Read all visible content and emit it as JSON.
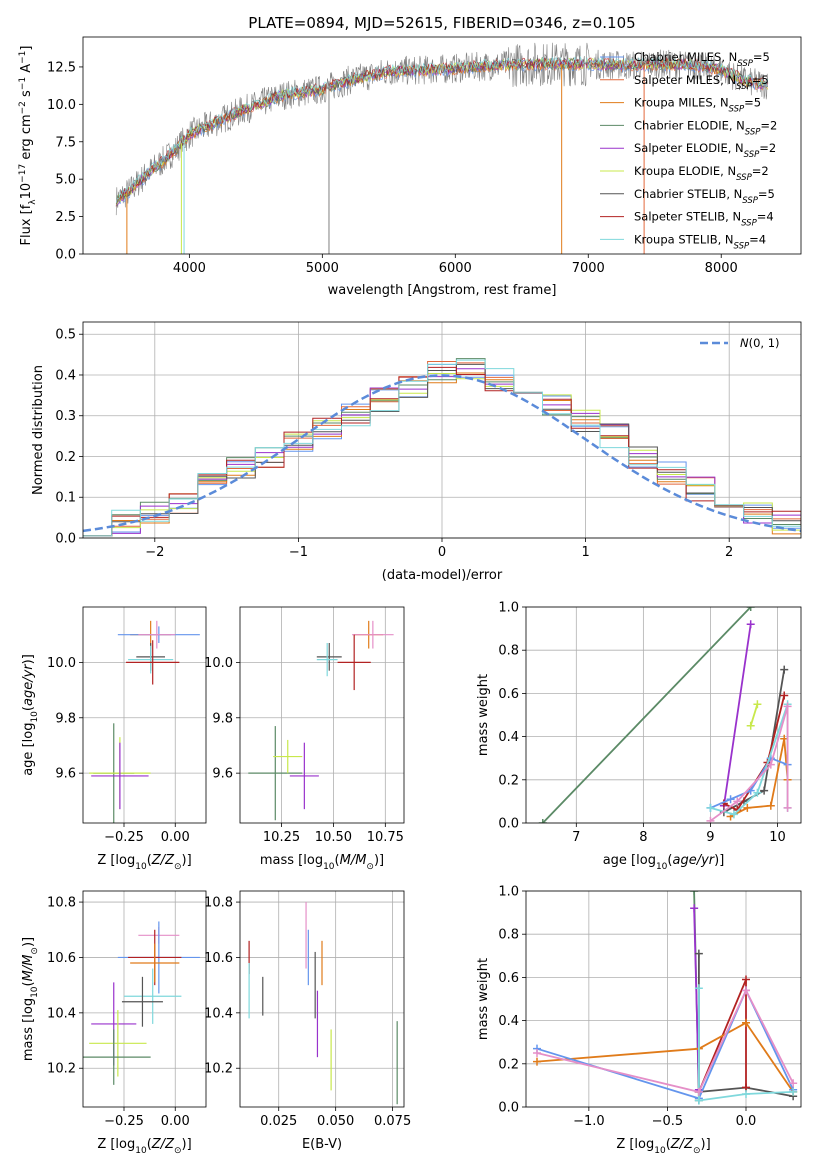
{
  "chart_data": [
    {
      "id": "spectrum",
      "type": "line",
      "title": "PLATE=0894, MJD=52615, FIBERID=0346, z=0.105",
      "xlabel": "wavelength [Angstrom, rest frame]",
      "ylabel": "Flux [f_λ10^-17 erg cm^-2 s^-1 A^-1]",
      "xlim": [
        3200,
        8600
      ],
      "ylim": [
        0,
        14.5
      ],
      "xticks": [
        4000,
        5000,
        6000,
        7000,
        8000
      ],
      "yticks": [
        0.0,
        2.5,
        5.0,
        7.5,
        10.0,
        12.5
      ],
      "xtick_labels": [
        "4000",
        "5000",
        "6000",
        "7000",
        "8000"
      ],
      "ytick_labels": [
        "0.0",
        "2.5",
        "5.0",
        "7.5",
        "10.0",
        "12.5"
      ],
      "legend_position": "upper-right",
      "continuum": {
        "x": [
          3450,
          3550,
          3700,
          3800,
          3900,
          4000,
          4200,
          4400,
          4700,
          5000,
          5200,
          5500,
          5800,
          6000,
          6300,
          6600,
          7000,
          7300,
          7500,
          7800,
          8000,
          8200,
          8350
        ],
        "y": [
          3.6,
          4.2,
          5.5,
          6.2,
          7.0,
          8.0,
          8.8,
          9.6,
          10.6,
          11.0,
          11.6,
          12.2,
          12.3,
          12.4,
          12.6,
          12.7,
          12.7,
          12.6,
          12.7,
          12.6,
          12.3,
          11.5,
          11.3
        ]
      },
      "series": [
        {
          "name": "Chabrier MILES, N_SSP=5",
          "color": "#6495ED"
        },
        {
          "name": "Salpeter MILES, N_SSP=5",
          "color": "#E2683C"
        },
        {
          "name": "Kroupa MILES, N_SSP=5",
          "color": "#E07B1A"
        },
        {
          "name": "Chabrier ELODIE, N_SSP=2",
          "color": "#5B8A66"
        },
        {
          "name": "Salpeter ELODIE, N_SSP=2",
          "color": "#9932CC"
        },
        {
          "name": "Kroupa ELODIE, N_SSP=2",
          "color": "#C8E84C"
        },
        {
          "name": "Chabrier STELIB, N_SSP=5",
          "color": "#555555"
        },
        {
          "name": "Salpeter STELIB, N_SSP=4",
          "color": "#B22222"
        },
        {
          "name": "Kroupa STELIB, N_SSP=4",
          "color": "#7FD8DC"
        }
      ]
    },
    {
      "id": "residuals",
      "type": "line",
      "xlabel": "(data-model)/error",
      "ylabel": "Normed distribution",
      "xlim": [
        -2.5,
        2.5
      ],
      "ylim": [
        0,
        0.53
      ],
      "xticks": [
        -2,
        -1,
        0,
        1,
        2
      ],
      "yticks": [
        0.0,
        0.1,
        0.2,
        0.3,
        0.4,
        0.5
      ],
      "xtick_labels": [
        "−2",
        "−1",
        "0",
        "1",
        "2"
      ],
      "ytick_labels": [
        "0.0",
        "0.1",
        "0.2",
        "0.3",
        "0.4",
        "0.5"
      ],
      "legend": "N(0, 1)",
      "legend_position": "upper-right",
      "gaussian": {
        "mean": 0,
        "sigma": 1,
        "color": "#5B8BD9"
      },
      "histogram": {
        "bin_edges": [
          -2.5,
          -2.3,
          -2.1,
          -1.9,
          -1.7,
          -1.5,
          -1.3,
          -1.1,
          -0.9,
          -0.7,
          -0.5,
          -0.3,
          -0.1,
          0.1,
          0.3,
          0.5,
          0.7,
          0.9,
          1.1,
          1.3,
          1.5,
          1.7,
          1.9,
          2.1,
          2.3,
          2.5
        ],
        "heights": [
          0.035,
          0.04,
          0.06,
          0.09,
          0.13,
          0.17,
          0.2,
          0.24,
          0.27,
          0.3,
          0.34,
          0.37,
          0.41,
          0.42,
          0.39,
          0.36,
          0.33,
          0.29,
          0.25,
          0.2,
          0.16,
          0.12,
          0.09,
          0.06,
          0.04
        ]
      }
    },
    {
      "id": "age-vs-Z",
      "type": "scatter",
      "xlabel": "Z [log10(Z/Z☉)]",
      "ylabel": "age [log10(age/yr)]",
      "xlim": [
        -0.45,
        0.15
      ],
      "ylim": [
        9.42,
        10.2
      ],
      "xticks": [
        -0.25,
        0.0
      ],
      "yticks": [
        9.6,
        9.8,
        10.0
      ],
      "xtick_labels": [
        "−0.25",
        "0.00"
      ],
      "ytick_labels": [
        "9.6",
        "9.8",
        "10.0"
      ],
      "points": [
        {
          "x": -0.12,
          "y": 10.1,
          "xerr": 0.1,
          "yerr": 0.05,
          "color": "#E07B1A"
        },
        {
          "x": -0.08,
          "y": 10.1,
          "xerr": 0.2,
          "yerr": 0.03,
          "color": "#6495ED"
        },
        {
          "x": -0.09,
          "y": 10.1,
          "xerr": 0.09,
          "yerr": 0.05,
          "color": "#E58FC8"
        },
        {
          "x": -0.12,
          "y": 10.02,
          "xerr": 0.07,
          "yerr": 0.05,
          "color": "#555555"
        },
        {
          "x": -0.12,
          "y": 10.01,
          "xerr": 0.11,
          "yerr": 0.05,
          "color": "#7FD8DC"
        },
        {
          "x": -0.11,
          "y": 10.0,
          "xerr": 0.13,
          "yerr": 0.08,
          "color": "#B22222"
        },
        {
          "x": -0.3,
          "y": 9.6,
          "xerr": 0.1,
          "yerr": 0.18,
          "color": "#5B8A66"
        },
        {
          "x": -0.27,
          "y": 9.6,
          "xerr": 0.15,
          "yerr": 0.13,
          "color": "#C8E84C"
        },
        {
          "x": -0.27,
          "y": 9.59,
          "xerr": 0.14,
          "yerr": 0.12,
          "color": "#9932CC"
        }
      ]
    },
    {
      "id": "age-vs-mass",
      "type": "scatter",
      "xlabel": "mass [log10(M/M☉)]",
      "xlim": [
        10.05,
        10.84
      ],
      "ylim": [
        9.42,
        10.2
      ],
      "xticks": [
        10.25,
        10.5,
        10.75
      ],
      "yticks": [
        9.6,
        9.8,
        10.0
      ],
      "xtick_labels": [
        "10.25",
        "10.50",
        "10.75"
      ],
      "ytick_labels": [
        "9.6",
        "9.8",
        "10.0"
      ],
      "points": [
        {
          "x": 10.67,
          "y": 10.1,
          "xerr": 0.07,
          "yerr": 0.05,
          "color": "#E07B1A"
        },
        {
          "x": 10.69,
          "y": 10.1,
          "xerr": 0.1,
          "yerr": 0.05,
          "color": "#E58FC8"
        },
        {
          "x": 10.48,
          "y": 10.02,
          "xerr": 0.06,
          "yerr": 0.05,
          "color": "#555555"
        },
        {
          "x": 10.47,
          "y": 10.01,
          "xerr": 0.05,
          "yerr": 0.06,
          "color": "#7FD8DC"
        },
        {
          "x": 10.6,
          "y": 10.0,
          "xerr": 0.08,
          "yerr": 0.1,
          "color": "#B22222"
        },
        {
          "x": 10.22,
          "y": 9.6,
          "xerr": 0.13,
          "yerr": 0.17,
          "color": "#5B8A66"
        },
        {
          "x": 10.28,
          "y": 9.66,
          "xerr": 0.07,
          "yerr": 0.06,
          "color": "#C8E84C"
        },
        {
          "x": 10.36,
          "y": 9.59,
          "xerr": 0.07,
          "yerr": 0.12,
          "color": "#9932CC"
        }
      ]
    },
    {
      "id": "massweight-vs-age",
      "type": "line",
      "xlabel": "age [log10(age/yr)]",
      "ylabel": "mass weight",
      "xlim": [
        6.25,
        10.35
      ],
      "ylim": [
        0,
        1.0
      ],
      "xticks": [
        7,
        8,
        9,
        10
      ],
      "yticks": [
        0.0,
        0.2,
        0.4,
        0.6,
        0.8,
        1.0
      ],
      "xtick_labels": [
        "7",
        "8",
        "9",
        "10"
      ],
      "ytick_labels": [
        "0.0",
        "0.2",
        "0.4",
        "0.6",
        "0.8",
        "1.0"
      ],
      "series": [
        {
          "color": "#5B8A66",
          "x": [
            6.5,
            9.6
          ],
          "y": [
            0.0,
            1.0
          ]
        },
        {
          "color": "#9932CC",
          "x": [
            9.2,
            9.6
          ],
          "y": [
            0.08,
            0.92
          ]
        },
        {
          "color": "#C8E84C",
          "x": [
            9.6,
            9.7
          ],
          "y": [
            0.45,
            0.55
          ]
        },
        {
          "color": "#555555",
          "x": [
            9.2,
            9.5,
            9.8,
            10.1
          ],
          "y": [
            0.05,
            0.1,
            0.15,
            0.71
          ]
        },
        {
          "color": "#B22222",
          "x": [
            9.2,
            9.4,
            9.85,
            10.1
          ],
          "y": [
            0.09,
            0.06,
            0.28,
            0.59
          ]
        },
        {
          "color": "#E07B1A",
          "x": [
            9.3,
            9.55,
            9.9,
            10.1,
            10.15
          ],
          "y": [
            0.03,
            0.07,
            0.08,
            0.39,
            0.2
          ]
        },
        {
          "color": "#6495ED",
          "x": [
            9.0,
            9.3,
            9.6,
            9.9,
            10.15
          ],
          "y": [
            0.07,
            0.11,
            0.15,
            0.3,
            0.27
          ]
        },
        {
          "color": "#7FD8DC",
          "x": [
            9.0,
            9.35,
            9.7,
            10.15,
            10.15
          ],
          "y": [
            0.07,
            0.04,
            0.14,
            0.55,
            0.07
          ]
        },
        {
          "color": "#E58FC8",
          "x": [
            9.0,
            9.4,
            9.9,
            10.15,
            10.15
          ],
          "y": [
            0.01,
            0.1,
            0.27,
            0.54,
            0.07
          ]
        }
      ]
    },
    {
      "id": "mass-vs-Z",
      "type": "scatter",
      "xlabel": "Z [log10(Z/Z☉)]",
      "ylabel": "mass [log10(M/M☉)]",
      "xlim": [
        -0.45,
        0.15
      ],
      "ylim": [
        10.06,
        10.84
      ],
      "xticks": [
        -0.25,
        0.0
      ],
      "yticks": [
        10.2,
        10.4,
        10.6,
        10.8
      ],
      "xtick_labels": [
        "−0.25",
        "0.00"
      ],
      "ytick_labels": [
        "10.2",
        "10.4",
        "10.6",
        "10.8"
      ],
      "points": [
        {
          "x": -0.08,
          "y": 10.68,
          "xerr": 0.1,
          "yerr": 0.03,
          "color": "#E58FC8"
        },
        {
          "x": -0.08,
          "y": 10.6,
          "xerr": 0.2,
          "yerr": 0.13,
          "color": "#6495ED"
        },
        {
          "x": -0.1,
          "y": 10.6,
          "xerr": 0.13,
          "yerr": 0.1,
          "color": "#B22222"
        },
        {
          "x": -0.1,
          "y": 10.58,
          "xerr": 0.12,
          "yerr": 0.07,
          "color": "#E07B1A"
        },
        {
          "x": -0.11,
          "y": 10.46,
          "xerr": 0.14,
          "yerr": 0.1,
          "color": "#7FD8DC"
        },
        {
          "x": -0.16,
          "y": 10.44,
          "xerr": 0.1,
          "yerr": 0.09,
          "color": "#555555"
        },
        {
          "x": -0.3,
          "y": 10.36,
          "xerr": 0.11,
          "yerr": 0.15,
          "color": "#9932CC"
        },
        {
          "x": -0.28,
          "y": 10.29,
          "xerr": 0.14,
          "yerr": 0.12,
          "color": "#C8E84C"
        },
        {
          "x": -0.3,
          "y": 10.24,
          "xerr": 0.18,
          "yerr": 0.1,
          "color": "#5B8A66"
        }
      ]
    },
    {
      "id": "mass-vs-EBV",
      "type": "scatter",
      "xlabel": "E(B-V)",
      "xlim": [
        0.008,
        0.08
      ],
      "ylim": [
        10.06,
        10.84
      ],
      "xticks": [
        0.025,
        0.05,
        0.075
      ],
      "yticks": [
        10.2,
        10.4,
        10.6,
        10.8
      ],
      "xtick_labels": [
        "0.025",
        "0.050",
        "0.075"
      ],
      "ytick_labels": [
        "10.2",
        "10.4",
        "10.6",
        "10.8"
      ],
      "points": [
        {
          "x": 0.037,
          "y": 10.68,
          "yerr": 0.12,
          "color": "#E58FC8"
        },
        {
          "x": 0.038,
          "y": 10.6,
          "yerr": 0.1,
          "color": "#6495ED"
        },
        {
          "x": 0.044,
          "y": 10.58,
          "yerr": 0.08,
          "color": "#E07B1A"
        },
        {
          "x": 0.041,
          "y": 10.5,
          "yerr": 0.12,
          "color": "#555555"
        },
        {
          "x": 0.012,
          "y": 10.6,
          "yerr": 0.06,
          "color": "#B22222"
        },
        {
          "x": 0.012,
          "y": 10.48,
          "yerr": 0.1,
          "color": "#7FD8DC"
        },
        {
          "x": 0.018,
          "y": 10.46,
          "yerr": 0.07,
          "color": "#555555"
        },
        {
          "x": 0.042,
          "y": 10.36,
          "yerr": 0.12,
          "color": "#9932CC"
        },
        {
          "x": 0.048,
          "y": 10.23,
          "yerr": 0.11,
          "color": "#C8E84C"
        },
        {
          "x": 0.077,
          "y": 10.22,
          "yerr": 0.15,
          "color": "#5B8A66"
        }
      ]
    },
    {
      "id": "massweight-vs-Z",
      "type": "line",
      "xlabel": "Z [log10(Z/Z☉)]",
      "ylabel": "mass weight",
      "xlim": [
        -1.4,
        0.35
      ],
      "ylim": [
        0,
        1.0
      ],
      "xticks": [
        -1.0,
        -0.5,
        0.0
      ],
      "yticks": [
        0.0,
        0.2,
        0.4,
        0.6,
        0.8,
        1.0
      ],
      "xtick_labels": [
        "−1.0",
        "−0.5",
        "0.0"
      ],
      "ytick_labels": [
        "0.0",
        "0.2",
        "0.4",
        "0.6",
        "0.8",
        "1.0"
      ],
      "series": [
        {
          "color": "#5B8A66",
          "x": [
            -0.33,
            -0.3
          ],
          "y": [
            1.0,
            0.03
          ]
        },
        {
          "color": "#9932CC",
          "x": [
            -0.33,
            -0.3
          ],
          "y": [
            0.92,
            0.08
          ]
        },
        {
          "color": "#555555",
          "x": [
            -0.3,
            -0.3,
            0.0,
            0.3
          ],
          "y": [
            0.71,
            0.07,
            0.09,
            0.05
          ]
        },
        {
          "color": "#B22222",
          "x": [
            -0.3,
            0.0,
            0.0
          ],
          "y": [
            0.07,
            0.59,
            0.09
          ]
        },
        {
          "color": "#E07B1A",
          "x": [
            -1.33,
            -0.3,
            0.0,
            0.3
          ],
          "y": [
            0.21,
            0.27,
            0.39,
            0.07
          ]
        },
        {
          "color": "#6495ED",
          "x": [
            -1.33,
            -0.3,
            0.0,
            0.3
          ],
          "y": [
            0.27,
            0.04,
            0.54,
            0.08
          ]
        },
        {
          "color": "#7FD8DC",
          "x": [
            -0.3,
            -0.3,
            0.0,
            0.3
          ],
          "y": [
            0.55,
            0.03,
            0.06,
            0.07
          ]
        },
        {
          "color": "#E58FC8",
          "x": [
            -1.33,
            -0.3,
            0.0,
            0.3
          ],
          "y": [
            0.25,
            0.07,
            0.54,
            0.11
          ]
        }
      ]
    }
  ]
}
